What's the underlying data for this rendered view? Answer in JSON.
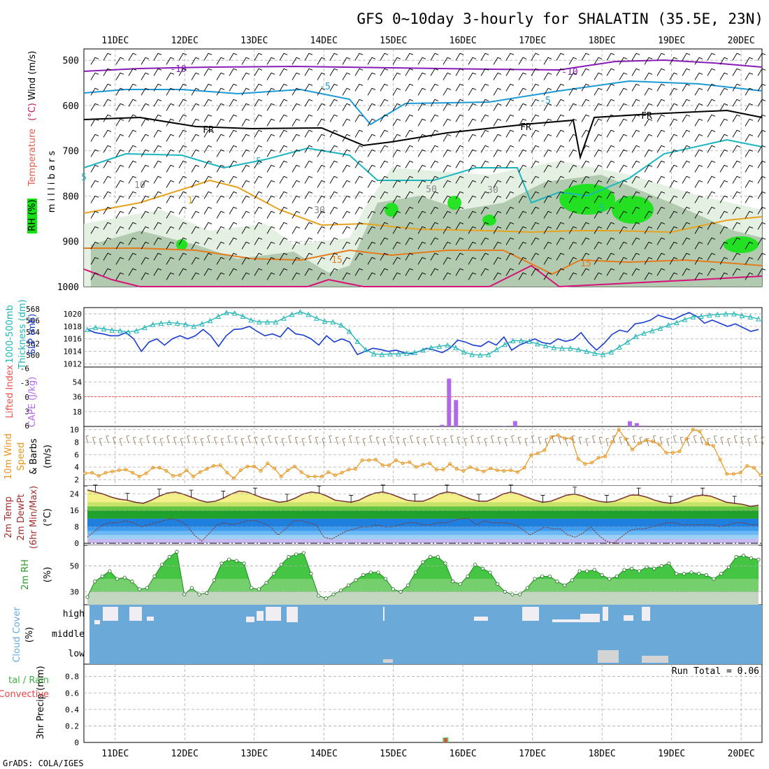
{
  "title": "GFS 0~10day 3-hourly for SHALATIN (35.5E, 23N)",
  "footer": "GrADS: COLA/IGES",
  "days": [
    "11DEC",
    "12DEC",
    "13DEC",
    "14DEC",
    "15DEC",
    "16DEC",
    "17DEC",
    "18DEC",
    "19DEC",
    "20DEC"
  ],
  "colors": {
    "wind_barb": "#000000",
    "temp_neg10": "#8a1cb8",
    "temp_neg5": "#1b9ad6",
    "temp_fr": "#000000",
    "temp_5": "#1ab6c0",
    "temp_10": "#e7a21e",
    "temp_15": "#e57c1c",
    "temp_20": "#d6127a",
    "rh_light": "#dfeedd",
    "rh_mid": "#a9c3a6",
    "rh_dark": "#8aa887",
    "rh_green": "#13e313",
    "slp": "#1a3ccf",
    "thickness": "#21b5b5",
    "cape": "#b06ae8",
    "lifted": "#f05050",
    "wind_speed": "#e8951e",
    "t2m_fill_top": "#f3f08a",
    "t2m_fill_band1": "#c6e36b",
    "t2m_fill_band2": "#62c440",
    "t2m_fill_band3": "#1fa12c",
    "dew_fill1": "#1e7fde",
    "dew_fill2": "#3f9bf0",
    "dew_fill3": "#6ab9f5",
    "dew_fill4": "#9bd0f8",
    "dew_fill5": "#c7b7f2",
    "rh2_dark": "#44c644",
    "rh2_mid": "#8bd37f",
    "rh2_light": "#c2d6c0",
    "cloud": "#6ba9d8",
    "cloud_gap": "#f1eef3",
    "cloud_low": "#d4d4d4",
    "precip_total": "#55c75f",
    "precip_conv": "#ea4444"
  },
  "panels": {
    "upper_air": {
      "ylabel_parts": [
        "RH (%)",
        "Temperature",
        "(°C)",
        "Wind (m/s)",
        "m i l l i b a r s"
      ],
      "levels": [
        "500",
        "600",
        "700",
        "800",
        "900",
        "1000"
      ],
      "contour_labels": [
        "-10",
        "-10",
        "-5",
        "-5",
        "FR",
        "FR",
        "FR",
        "5",
        "5",
        "10",
        "30",
        "50",
        "30",
        "15",
        "15",
        "1",
        "5"
      ]
    },
    "slp": {
      "ylabel_left": "1000-500mb",
      "ylabel_left2": "Thickness (dm)",
      "ylabel_right": "SLP (mb)",
      "ticks_left": [
        "568",
        "566",
        "564",
        "562",
        "560"
      ],
      "ticks_right": [
        "1020",
        "1018",
        "1016",
        "1014",
        "1012"
      ]
    },
    "cape": {
      "ylabel_left": "Lifted Index",
      "ylabel_right": "CAPE (J/kg)",
      "ticks_left": [
        "-6",
        "-3",
        "0",
        "3",
        "6"
      ],
      "ticks_right": [
        "54",
        "36",
        "18"
      ]
    },
    "wind10": {
      "ylabel": "10m Wind",
      "ylabel2": "Speed",
      "ylabel3": "& Barbs",
      "unit": "(m/s)",
      "ticks": [
        "10",
        "8",
        "6",
        "4",
        "2"
      ]
    },
    "temp2m": {
      "ylabel": "2m Temp",
      "ylabel2": "2m DewPt",
      "ylabel3": "(6hr Min/Max)",
      "unit": "(°C)",
      "ticks": [
        "24",
        "16",
        "8",
        "0"
      ]
    },
    "rh2m": {
      "ylabel": "2m RH",
      "unit": "(%)",
      "ticks": [
        "50",
        "30"
      ]
    },
    "cloud": {
      "ylabel": "Cloud Cover",
      "unit": "(%)",
      "levels": [
        "high",
        "middle",
        "low"
      ]
    },
    "precip": {
      "ylabel_left1": "tal / Rain",
      "ylabel_left2": "Convective",
      "ylabel": "3hr Precip (mm)",
      "ticks": [
        "0.8",
        "0.6",
        "0.4",
        "0.2",
        "0"
      ],
      "run_total": "Run Total = 0.06"
    }
  },
  "chart_data": [
    {
      "type": "line",
      "name": "slp",
      "y": [
        1017.5,
        1017,
        1016.8,
        1016.5,
        1016.5,
        1017,
        1016,
        1014,
        1015.5,
        1016,
        1015,
        1016,
        1016.5,
        1016,
        1016.5,
        1017.5,
        1016.5,
        1014.8,
        1016.5,
        1017.5,
        1017.6,
        1018,
        1017.2,
        1016.5,
        1016.8,
        1016.3,
        1017.8,
        1016.8,
        1016.6,
        1016,
        1015,
        1016.5,
        1015.5,
        1016,
        1015.5,
        1013.5,
        1014,
        1014.5,
        1014.3,
        1014,
        1014.2,
        1013.8,
        1013.6,
        1014,
        1014.5,
        1014.2,
        1013.8,
        1014.5,
        1015.8,
        1015.5,
        1015,
        1014.8,
        1015.6,
        1015,
        1016.3,
        1014.2,
        1015,
        1015.5,
        1016,
        1015.4,
        1015.2,
        1016,
        1015.6,
        1015.9,
        1017,
        1015.4,
        1014.2,
        1015.3,
        1016.7,
        1017.4,
        1017.1,
        1018.4,
        1018.6,
        1019,
        1019.8,
        1019.4,
        1019.1,
        1019.7,
        1020.2,
        1019.6,
        1018.5,
        1019,
        1018.5,
        1018,
        1018.4,
        1017.8,
        1017.2,
        1017.5
      ]
    },
    {
      "type": "line",
      "name": "thickness",
      "y": [
        564.5,
        564.8,
        564.6,
        564.4,
        564.3,
        564.1,
        564.3,
        564.8,
        565.3,
        565.5,
        565.6,
        565.5,
        565.3,
        565,
        565.4,
        565.9,
        566.6,
        567.2,
        567.1,
        566.6,
        566,
        565.7,
        565.7,
        565.7,
        566.3,
        566.9,
        567.3,
        566.9,
        566.3,
        565.8,
        565.7,
        565.2,
        564.2,
        562.6,
        561.3,
        560.6,
        560.5,
        560.6,
        560.6,
        560.7,
        560.8,
        561.2,
        561.6,
        561.8,
        562,
        561.6,
        560.9,
        560.5,
        560.4,
        560.5,
        561.3,
        562.1,
        562.7,
        562.7,
        562.6,
        562.2,
        561.9,
        561.6,
        561.5,
        561.5,
        561.3,
        561,
        560.7,
        560.5,
        560.9,
        561.7,
        562.5,
        563.4,
        563.9,
        564.3,
        564.7,
        565.2,
        565.6,
        566.1,
        566.5,
        566.6,
        566.8,
        566.9,
        567,
        567,
        566.7,
        566.5,
        566.2
      ]
    },
    {
      "type": "bar",
      "name": "cape",
      "values": [
        [
          "15.7",
          2
        ],
        [
          "15.8",
          58
        ],
        [
          "15.9",
          32
        ],
        [
          "16.6",
          0.7
        ],
        [
          "16.75",
          6.5
        ],
        [
          "18.4",
          6.3
        ],
        [
          "18.5",
          4
        ],
        [
          "18.6",
          1
        ]
      ]
    },
    {
      "type": "line",
      "name": "wind10m_speed",
      "y": [
        3,
        3.1,
        2.6,
        3.1,
        3.3,
        3.5,
        3.6,
        3.1,
        2.5,
        3,
        3.9,
        3.9,
        3.4,
        2.6,
        2.7,
        3.5,
        2.5,
        3.2,
        3.7,
        4.2,
        4.3,
        3.1,
        2.2,
        3.5,
        4.1,
        4.1,
        3.4,
        4.6,
        3.8,
        2.5,
        3.5,
        4.1,
        3.2,
        2.5,
        2.5,
        2.5,
        3.2,
        2.7,
        3.1,
        3.6,
        3.7,
        5.1,
        5.1,
        5.2,
        4.3,
        4.3,
        5.1,
        4.6,
        4.8,
        4,
        4.4,
        4.6,
        3.6,
        3.6,
        4.5,
        3.7,
        3.4,
        4,
        3.6,
        3.3,
        3.8,
        3.5,
        3.4,
        3.5,
        3.2,
        3.9,
        5.9,
        6.2,
        6.7,
        8.8,
        9.1,
        8.6,
        8.6,
        5.3,
        4.5,
        4.7,
        5.5,
        5.7,
        8,
        10,
        8.5,
        6.8,
        7.8,
        8.3,
        8.1,
        7.6,
        6.3,
        6.3,
        6.5,
        8.5,
        10,
        9.7,
        7.7,
        7.4,
        5.2,
        2.9,
        2.9,
        3.1,
        4.2,
        3.9,
        2.7
      ]
    },
    {
      "type": "area",
      "name": "temp2m",
      "y": [
        26,
        25,
        24,
        22.5,
        21.5,
        21,
        20,
        19.5,
        21,
        23,
        24.5,
        25,
        24,
        22.5,
        21,
        20,
        20.5,
        22,
        24,
        25.5,
        25,
        23.5,
        22,
        21,
        20,
        20.5,
        22,
        24,
        25,
        24.5,
        23,
        21,
        20.5,
        20,
        21,
        23,
        24.5,
        25,
        24,
        22.5,
        21,
        20.5,
        20.5,
        22,
        24,
        25,
        24.5,
        23,
        21.5,
        20.5,
        20.5,
        22,
        24,
        25,
        24,
        22.5,
        21,
        20,
        20.5,
        22,
        23.5,
        24,
        23,
        21.5,
        20.5,
        20,
        20.5,
        22,
        23.5,
        23.5,
        22.5,
        21,
        20,
        19.5,
        20,
        21.5,
        23,
        23.5,
        23,
        21.5,
        20,
        19.5,
        19,
        18,
        18.5
      ]
    },
    {
      "type": "line",
      "name": "dewpoint2m",
      "y": [
        3,
        6,
        9,
        10,
        10,
        11,
        10,
        8,
        9,
        10,
        11,
        12,
        11,
        9,
        4,
        1,
        5,
        9,
        10,
        9,
        10,
        11,
        11,
        10,
        8,
        4,
        7,
        11,
        11,
        10,
        9,
        3,
        2,
        4,
        6,
        7,
        8,
        8,
        9,
        8,
        8,
        9,
        10,
        10,
        9,
        9,
        10,
        10,
        11,
        12,
        12,
        9,
        11,
        10,
        10,
        10,
        9,
        7,
        4,
        6,
        8,
        7,
        7,
        4,
        3,
        5,
        8,
        4,
        1,
        0,
        3,
        6,
        7,
        7,
        8,
        9,
        10,
        10,
        9,
        9,
        9,
        9,
        9,
        8,
        9,
        10,
        10,
        9,
        9
      ]
    },
    {
      "type": "area",
      "name": "rh2m",
      "y": [
        26,
        38,
        42,
        46,
        40,
        41,
        38,
        32,
        33,
        42,
        51,
        57,
        61,
        28,
        33,
        28,
        29,
        39,
        52,
        55,
        54,
        52,
        33,
        32,
        37,
        44,
        51,
        57,
        59,
        60,
        44,
        27,
        25,
        28,
        31,
        35,
        39,
        43,
        45,
        45,
        40,
        32,
        30,
        35,
        45,
        53,
        57,
        57,
        52,
        38,
        36,
        42,
        51,
        48,
        45,
        36,
        30,
        28,
        28,
        33,
        40,
        42,
        42,
        38,
        35,
        39,
        46,
        46,
        47,
        43,
        40,
        42,
        47,
        48,
        46,
        49,
        48,
        50,
        52,
        44,
        44,
        45,
        44,
        43,
        40,
        44,
        49,
        57,
        58,
        56,
        55
      ]
    },
    {
      "type": "bar",
      "name": "precip3hr",
      "values": [
        [
          "15.75",
          0.06
        ]
      ]
    }
  ]
}
